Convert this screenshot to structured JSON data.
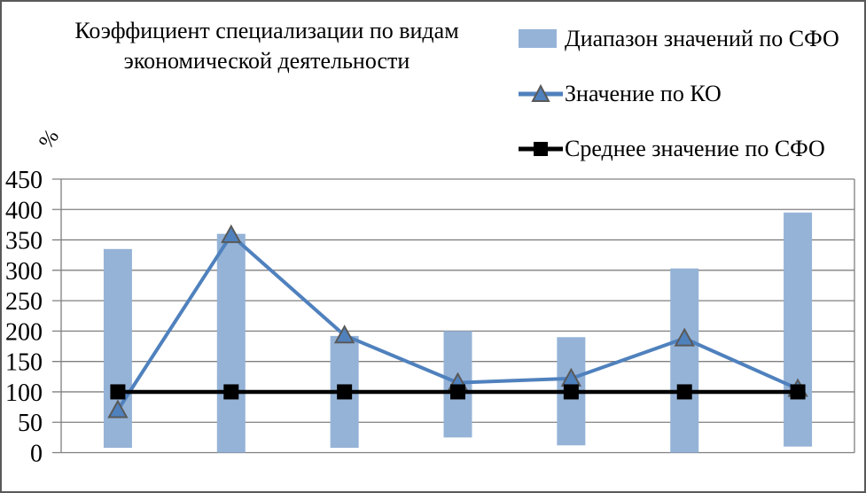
{
  "window": {
    "background": "#ffffff",
    "border_color": "#595959"
  },
  "chart": {
    "title": "Коэффициент специализации по видам\nэкономической деятельности",
    "y_unit_label": "%"
  },
  "legend": {
    "items": [
      {
        "label": "Диапазон значений по СФО",
        "marker": "bar-swatch",
        "color": "#95B3D7"
      },
      {
        "label": "Значение по КО",
        "marker": "triangle-line",
        "color": "#4F81BD"
      },
      {
        "label": "Среднее значение по СФО",
        "marker": "square-line",
        "color": "#000000"
      }
    ]
  },
  "chart_data": {
    "type": "combo",
    "title": "Коэффициент специализации по видам экономической деятельности",
    "xlabel": "",
    "ylabel": "%",
    "ylim": [
      0,
      450
    ],
    "ytick_step": 50,
    "yticks": [
      0,
      50,
      100,
      150,
      200,
      250,
      300,
      350,
      400,
      450
    ],
    "n_categories": 7,
    "x_axis_labels_visible": false,
    "grid": true,
    "gridline_color": "#808080",
    "legend_position": "top-right",
    "series": [
      {
        "name": "Диапазон значений по СФО",
        "type": "range_bar",
        "color": "#95B3D7",
        "ranges": [
          [
            8,
            335
          ],
          [
            0,
            360
          ],
          [
            8,
            192
          ],
          [
            25,
            200
          ],
          [
            12,
            190
          ],
          [
            0,
            303
          ],
          [
            10,
            395
          ]
        ]
      },
      {
        "name": "Значение по КО",
        "type": "line",
        "marker": "triangle",
        "color": "#4F81BD",
        "marker_fill": "#4F81BD",
        "marker_border": "#595959",
        "values": [
          70,
          358,
          193,
          115,
          122,
          188,
          105
        ]
      },
      {
        "name": "Среднее значение по СФО",
        "type": "line",
        "marker": "square",
        "color": "#000000",
        "marker_fill": "#000000",
        "values": [
          100,
          100,
          100,
          100,
          100,
          100,
          100
        ]
      }
    ]
  }
}
